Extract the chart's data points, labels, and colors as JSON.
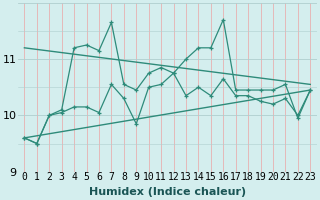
{
  "xlabel": "Humidex (Indice chaleur)",
  "x": [
    0,
    1,
    2,
    3,
    4,
    5,
    6,
    7,
    8,
    9,
    10,
    11,
    12,
    13,
    14,
    15,
    16,
    17,
    18,
    19,
    20,
    21,
    22,
    23
  ],
  "series1": [
    9.6,
    9.5,
    10.0,
    10.1,
    11.2,
    11.25,
    11.15,
    11.65,
    10.55,
    10.45,
    10.75,
    10.85,
    10.75,
    11.0,
    11.2,
    11.2,
    11.7,
    10.45,
    10.45,
    10.45,
    10.45,
    10.55,
    9.95,
    10.45
  ],
  "series2": [
    9.6,
    9.5,
    10.0,
    10.05,
    10.15,
    10.15,
    10.05,
    10.55,
    10.3,
    9.85,
    10.5,
    10.55,
    10.75,
    10.35,
    10.5,
    10.35,
    10.65,
    10.35,
    10.35,
    10.25,
    10.2,
    10.3,
    10.0,
    10.45
  ],
  "trend1_x": [
    0,
    23
  ],
  "trend1_y": [
    11.2,
    10.55
  ],
  "trend2_x": [
    0,
    23
  ],
  "trend2_y": [
    9.6,
    10.45
  ],
  "ylim": [
    9.0,
    12.0
  ],
  "xlim": [
    -0.5,
    23.5
  ],
  "line_color": "#2e8b7a",
  "bg_color": "#d4eeee",
  "grid_h_color": "#b8d8d8",
  "grid_v_color": "#e8b8b8",
  "tick_fontsize": 7,
  "label_fontsize": 8
}
